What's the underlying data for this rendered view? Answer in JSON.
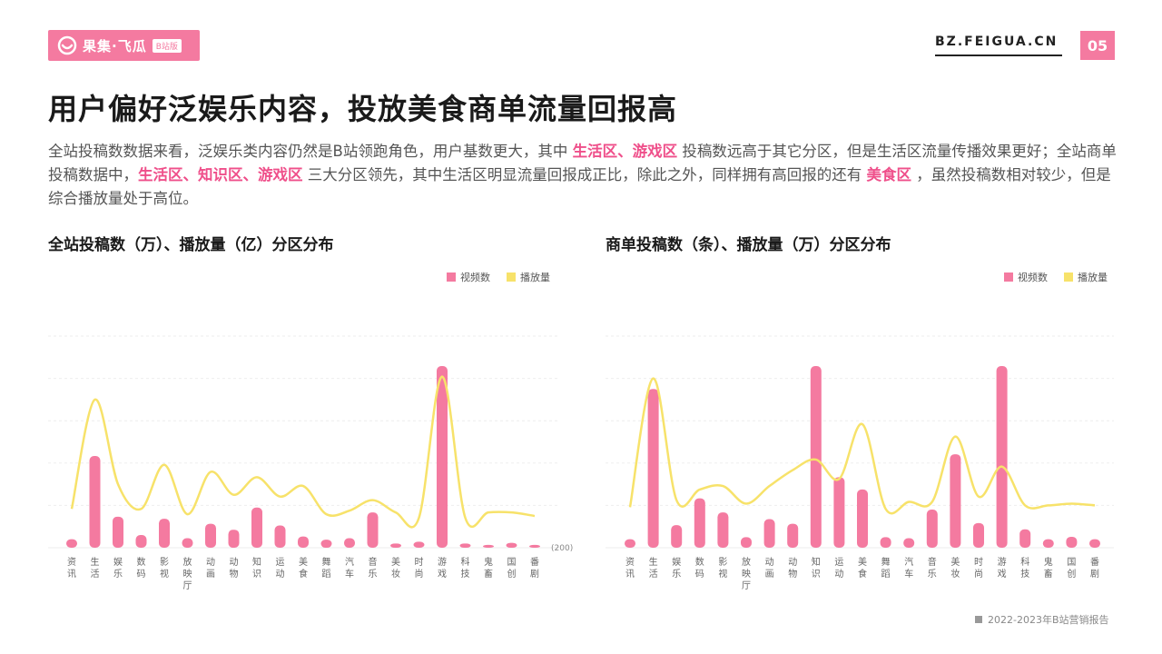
{
  "brand": {
    "name": "果集·飞瓜",
    "badge": "B站版"
  },
  "site": "BZ.FEIGUA.CN",
  "page_number": "05",
  "headline": "用户偏好泛娱乐内容，投放美食商单流量回报高",
  "description": {
    "p1": "全站投稿数数据来看，泛娱乐类内容仍然是B站领跑角色，用户基数更大，其中",
    "h1": "生活区、游戏区",
    "p2": "投稿数远高于其它分区，但是生活区流量传播效果更好；全站商单投稿数据中，",
    "h2": "生活区、知识区、游戏区",
    "p3": "三大分区领先，其中生活区明显流量回报成正比，除此之外，同样拥有高回报的还有",
    "h3": "美食区",
    "p4": "，虽然投稿数相对较少，但是综合播放量处于高位。"
  },
  "footer": "2022-2023年B站营销报告",
  "colors": {
    "bar": "#f47aa0",
    "line": "#f7e26a",
    "accent": "#ef4f8a"
  },
  "chart_data": [
    {
      "type": "bar",
      "title": "全站投稿数（万）、播放量（亿）分区分布",
      "legend_position": "top-right",
      "annotation": "(200)",
      "categories": [
        "资讯",
        "生活",
        "娱乐",
        "数码",
        "影视",
        "放映厅",
        "动画",
        "动物",
        "知识",
        "运动",
        "美食",
        "舞蹈",
        "汽车",
        "音乐",
        "美妆",
        "时尚",
        "游戏",
        "科技",
        "鬼畜",
        "国创",
        "番剧"
      ],
      "series": [
        {
          "name": "视频数",
          "kind": "bar",
          "values": [
            2.4,
            26,
            8.8,
            3.6,
            8.2,
            2.7,
            6.8,
            5.1,
            11.4,
            6.3,
            3.2,
            2.3,
            2.7,
            10,
            1.2,
            1.7,
            51.5,
            1.2,
            0.8,
            1.4,
            0.8
          ]
        },
        {
          "name": "播放量",
          "kind": "line",
          "values": [
            11,
            42,
            18,
            11,
            23.5,
            9.5,
            21.5,
            15,
            20,
            14.5,
            17.5,
            9.5,
            10.5,
            13.5,
            10,
            8.5,
            48.5,
            8.5,
            10,
            10,
            9
          ]
        }
      ],
      "ylim": [
        0,
        60
      ]
    },
    {
      "type": "bar",
      "title": "商单投稿数（条）、播放量（万）分区分布",
      "legend_position": "top-right",
      "categories": [
        "资讯",
        "生活",
        "娱乐",
        "数码",
        "影视",
        "放映厅",
        "动画",
        "动物",
        "知识",
        "运动",
        "美食",
        "舞蹈",
        "汽车",
        "音乐",
        "美妆",
        "时尚",
        "游戏",
        "科技",
        "鬼畜",
        "国创",
        "番剧"
      ],
      "series": [
        {
          "name": "视频数",
          "kind": "bar",
          "values": [
            2.4,
            45,
            6.4,
            14,
            10,
            3,
            8.1,
            6.8,
            51.5,
            20,
            16.5,
            3,
            2.7,
            10.8,
            26.5,
            7,
            51.5,
            5.2,
            2.4,
            3.1,
            2.4
          ]
        },
        {
          "name": "播放量",
          "kind": "line",
          "values": [
            11.5,
            48,
            13.5,
            16.5,
            17.5,
            12.5,
            17.5,
            22,
            25,
            19.5,
            35,
            11,
            13,
            13,
            31.5,
            14.5,
            23,
            12,
            12,
            12.5,
            12
          ]
        }
      ],
      "ylim": [
        0,
        60
      ]
    }
  ]
}
